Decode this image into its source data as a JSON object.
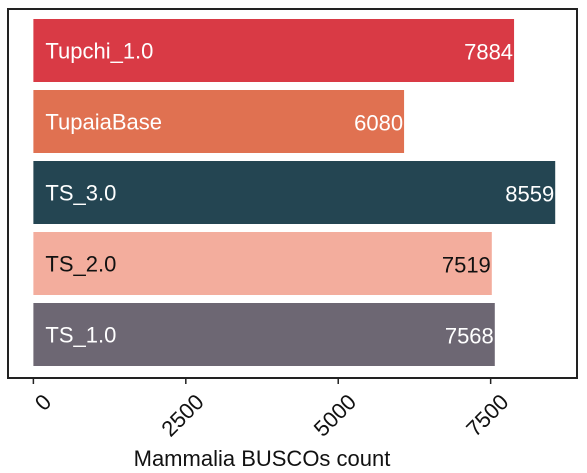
{
  "chart_data": {
    "type": "bar",
    "orientation": "horizontal",
    "categories": [
      "Tupchi_1.0",
      "TupaiaBase",
      "TS_3.0",
      "TS_2.0",
      "TS_1.0"
    ],
    "values": [
      7884,
      6080,
      8559,
      7519,
      7568
    ],
    "colors": [
      "#d93a45",
      "#e07151",
      "#244552",
      "#f3ad9d",
      "#6d6773"
    ],
    "label_colors": [
      "#ffffff",
      "#ffffff",
      "#ffffff",
      "#111111",
      "#ffffff"
    ],
    "xlabel": "Mammalia BUSCOs count",
    "xticks": [
      0,
      2500,
      5000,
      7500
    ],
    "xlim": [
      -400,
      8900
    ],
    "grid": false
  }
}
